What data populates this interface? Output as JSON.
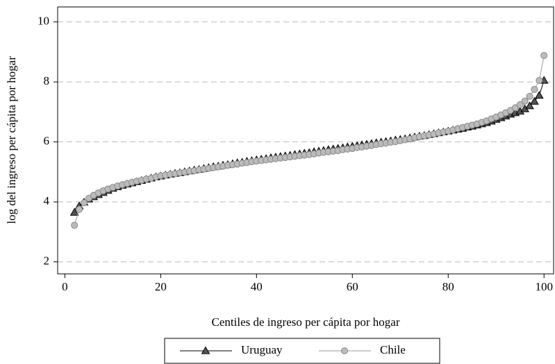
{
  "chart_data": {
    "type": "line",
    "xlabel": "Centiles de ingreso per cápita por hogar",
    "ylabel": "log del ingreso per cápita por hogar",
    "x": [
      2,
      3,
      4,
      5,
      6,
      7,
      8,
      9,
      10,
      11,
      12,
      13,
      14,
      15,
      16,
      17,
      18,
      19,
      20,
      21,
      22,
      23,
      24,
      25,
      26,
      27,
      28,
      29,
      30,
      31,
      32,
      33,
      34,
      35,
      36,
      37,
      38,
      39,
      40,
      41,
      42,
      43,
      44,
      45,
      46,
      47,
      48,
      49,
      50,
      51,
      52,
      53,
      54,
      55,
      56,
      57,
      58,
      59,
      60,
      61,
      62,
      63,
      64,
      65,
      66,
      67,
      68,
      69,
      70,
      71,
      72,
      73,
      74,
      75,
      76,
      77,
      78,
      79,
      80,
      81,
      82,
      83,
      84,
      85,
      86,
      87,
      88,
      89,
      90,
      91,
      92,
      93,
      94,
      95,
      96,
      97,
      98,
      99,
      100
    ],
    "series": [
      {
        "name": "Uruguay",
        "color": "#000000",
        "marker_color": "#555555",
        "marker": "triangle",
        "values": [
          3.65,
          3.86,
          3.99,
          4.09,
          4.17,
          4.24,
          4.31,
          4.38,
          4.45,
          4.5,
          4.55,
          4.59,
          4.63,
          4.67,
          4.71,
          4.75,
          4.79,
          4.83,
          4.86,
          4.89,
          4.92,
          4.95,
          4.97,
          5.0,
          5.03,
          5.06,
          5.08,
          5.11,
          5.14,
          5.17,
          5.19,
          5.22,
          5.24,
          5.27,
          5.3,
          5.32,
          5.35,
          5.37,
          5.4,
          5.42,
          5.44,
          5.47,
          5.49,
          5.51,
          5.53,
          5.55,
          5.58,
          5.6,
          5.62,
          5.64,
          5.67,
          5.69,
          5.71,
          5.74,
          5.76,
          5.78,
          5.8,
          5.83,
          5.85,
          5.87,
          5.9,
          5.92,
          5.94,
          5.97,
          5.99,
          6.01,
          6.03,
          6.06,
          6.08,
          6.1,
          6.13,
          6.16,
          6.19,
          6.21,
          6.24,
          6.27,
          6.3,
          6.33,
          6.36,
          6.39,
          6.42,
          6.45,
          6.49,
          6.52,
          6.56,
          6.6,
          6.64,
          6.69,
          6.75,
          6.8,
          6.86,
          6.92,
          6.97,
          7.02,
          7.1,
          7.2,
          7.35,
          7.55,
          8.05
        ]
      },
      {
        "name": "Chile",
        "color": "#999999",
        "marker_color": "#bbbbbb",
        "marker": "circle",
        "values": [
          3.22,
          3.75,
          3.97,
          4.12,
          4.22,
          4.3,
          4.37,
          4.43,
          4.48,
          4.53,
          4.57,
          4.61,
          4.65,
          4.69,
          4.72,
          4.76,
          4.79,
          4.83,
          4.87,
          4.89,
          4.92,
          4.94,
          4.97,
          4.99,
          5.02,
          5.04,
          5.07,
          5.09,
          5.12,
          5.14,
          5.17,
          5.19,
          5.22,
          5.24,
          5.26,
          5.29,
          5.31,
          5.34,
          5.36,
          5.38,
          5.4,
          5.42,
          5.44,
          5.46,
          5.48,
          5.5,
          5.52,
          5.54,
          5.56,
          5.58,
          5.6,
          5.63,
          5.65,
          5.67,
          5.69,
          5.71,
          5.74,
          5.76,
          5.78,
          5.81,
          5.83,
          5.86,
          5.88,
          5.91,
          5.94,
          5.96,
          5.99,
          6.01,
          6.04,
          6.07,
          6.1,
          6.14,
          6.17,
          6.2,
          6.23,
          6.26,
          6.3,
          6.33,
          6.36,
          6.4,
          6.44,
          6.48,
          6.52,
          6.56,
          6.6,
          6.65,
          6.7,
          6.77,
          6.83,
          6.9,
          6.97,
          7.05,
          7.14,
          7.24,
          7.36,
          7.52,
          7.75,
          8.05,
          8.88
        ]
      }
    ],
    "xlim": [
      -1.5,
      102
    ],
    "ylim": [
      1.6,
      10.5
    ],
    "xticks": [
      0,
      20,
      40,
      60,
      80,
      100
    ],
    "yticks": [
      2,
      4,
      6,
      8,
      10
    ],
    "grid": true,
    "legend_position": "bottom"
  }
}
